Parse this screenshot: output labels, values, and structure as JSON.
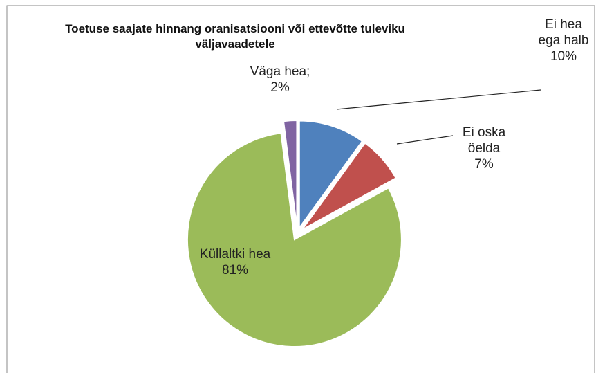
{
  "chart_data": {
    "type": "pie",
    "title": "Toetuse saajate hinnang oranisatsiooni või ettevõtte tuleviku väljavaadetele",
    "categories": [
      "Ei hea ega halb",
      "Ei oska öelda",
      "Küllaltki hea",
      "Väga hea;"
    ],
    "values": [
      10,
      7,
      81,
      2
    ],
    "value_labels": [
      "10%",
      "7%",
      "81%",
      "2%"
    ],
    "colors": [
      "#4f81bd",
      "#c0504d",
      "#9bbb59",
      "#8064a2"
    ]
  }
}
